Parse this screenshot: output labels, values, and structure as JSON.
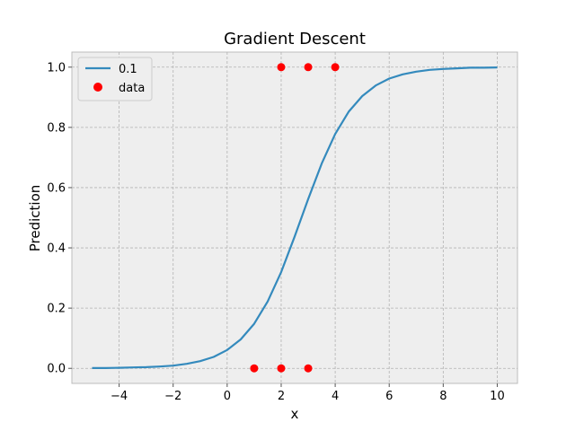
{
  "chart_data": {
    "type": "line",
    "title": "Gradient Descent",
    "xlabel": "x",
    "ylabel": "Prediction",
    "xlim": [
      -5.75,
      10.75
    ],
    "ylim": [
      -0.05,
      1.05
    ],
    "xticks": [
      -4,
      -2,
      0,
      2,
      4,
      6,
      8,
      10
    ],
    "xtick_labels": [
      "−4",
      "−2",
      "0",
      "2",
      "4",
      "6",
      "8",
      "10"
    ],
    "yticks": [
      0.0,
      0.2,
      0.4,
      0.6,
      0.8,
      1.0
    ],
    "ytick_labels": [
      "0.0",
      "0.2",
      "0.4",
      "0.6",
      "0.8",
      "1.0"
    ],
    "grid": true,
    "legend_position": "top-left",
    "series": [
      {
        "name": "0.1",
        "kind": "line",
        "color": "#348abd",
        "x": [
          -5,
          -4.5,
          -4,
          -3.5,
          -3,
          -2.5,
          -2,
          -1.5,
          -1,
          -0.5,
          0,
          0.5,
          1,
          1.5,
          2,
          2.5,
          3,
          3.5,
          4,
          4.5,
          5,
          5.5,
          6,
          6.5,
          7,
          7.5,
          8,
          8.5,
          9,
          9.5,
          10
        ],
        "y": [
          0.001,
          0.001,
          0.002,
          0.003,
          0.004,
          0.006,
          0.009,
          0.015,
          0.024,
          0.038,
          0.061,
          0.096,
          0.148,
          0.222,
          0.32,
          0.438,
          0.562,
          0.68,
          0.778,
          0.852,
          0.904,
          0.939,
          0.962,
          0.976,
          0.985,
          0.991,
          0.994,
          0.996,
          0.998,
          0.998,
          0.999
        ]
      },
      {
        "name": "data",
        "kind": "scatter",
        "color": "#ff0000",
        "x": [
          1,
          2,
          3,
          2,
          3,
          4
        ],
        "y": [
          0,
          0,
          0,
          1,
          1,
          1
        ]
      }
    ]
  }
}
